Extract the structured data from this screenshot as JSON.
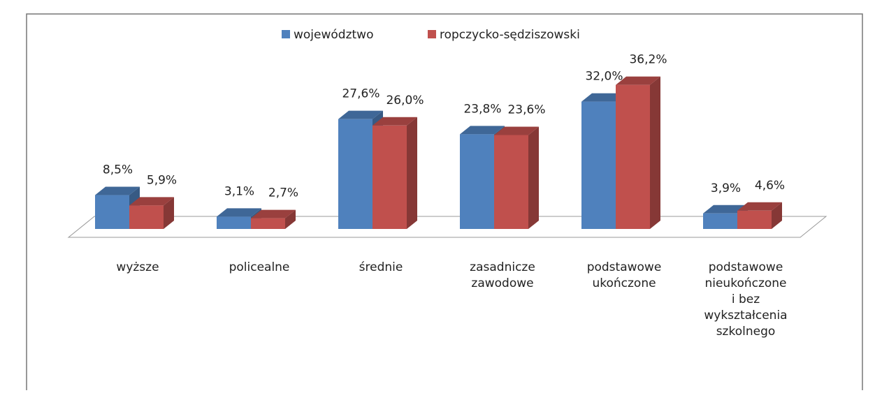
{
  "chart_data": {
    "type": "bar3d",
    "categories": [
      "wyższe",
      "policealne",
      "średnie",
      "zasadnicze\nzawodowe",
      "podstawowe\nukończone",
      "podstawowe\nnieukończone\ni bez\nwykształcenia\nszkolnego"
    ],
    "series": [
      {
        "name": "województwo",
        "color": "#4f81bd",
        "values": [
          8.5,
          3.1,
          27.6,
          23.8,
          32.0,
          3.9
        ],
        "value_labels": [
          "8,5%",
          "3,1%",
          "27,6%",
          "23,8%",
          "32,0%",
          "3,9%"
        ]
      },
      {
        "name": "ropczycko-sędziszowski",
        "color": "#c0504d",
        "values": [
          5.9,
          2.7,
          26.0,
          23.6,
          36.2,
          4.6
        ],
        "value_labels": [
          "5,9%",
          "2,7%",
          "26,0%",
          "23,6%",
          "36,2%",
          "4,6%"
        ]
      }
    ],
    "ylim": [
      0,
      40
    ],
    "legend": "top"
  }
}
